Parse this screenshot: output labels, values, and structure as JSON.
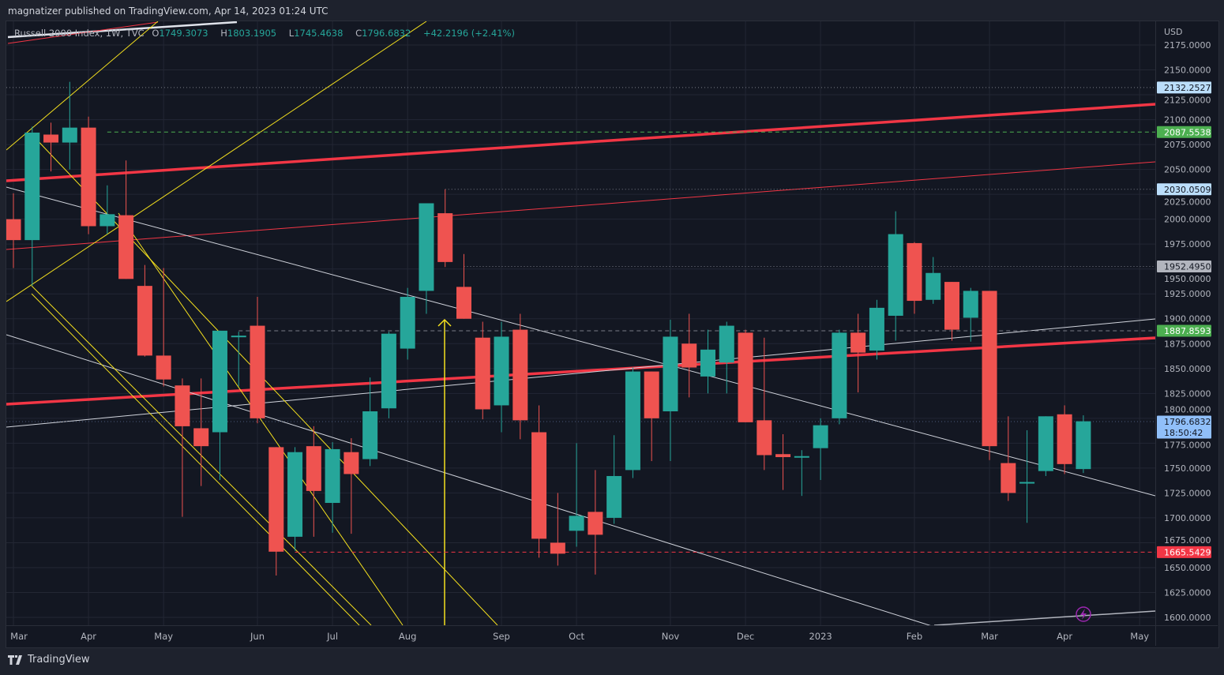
{
  "header": {
    "publisher_line": "magnatizer published on TradingView.com, Apr 14, 2023 01:24 UTC"
  },
  "legend": {
    "symbol": "Russell 2000 Index, 1W, TVC",
    "o_label": "O",
    "o": "1749.3073",
    "h_label": "H",
    "h": "1803.1905",
    "l_label": "L",
    "l": "1745.4638",
    "c_label": "C",
    "c": "1796.6832",
    "change": "+42.2196 (+2.41%)"
  },
  "footer": {
    "brand": "TradingView"
  },
  "colors": {
    "up": "#26a69a",
    "down": "#ef5350",
    "bg": "#131722",
    "grid": "#232734",
    "trend_red": "#f23645",
    "yellow": "#f5e11e"
  },
  "chart_data": {
    "type": "candlestick",
    "title": "Russell 2000 Index, 1W, TVC",
    "currency": "USD",
    "ylim": [
      1587,
      2189
    ],
    "y_ticks": [
      "2175.0000",
      "2150.0000",
      "2125.0000",
      "2100.0000",
      "2075.0000",
      "2050.0000",
      "2025.0000",
      "2000.0000",
      "1975.0000",
      "1950.0000",
      "1925.0000",
      "1900.0000",
      "1875.0000",
      "1850.0000",
      "1825.0000",
      "1800.0000",
      "1775.0000",
      "1750.0000",
      "1725.0000",
      "1700.0000",
      "1675.0000",
      "1650.0000",
      "1625.0000",
      "1600.0000"
    ],
    "x_ticks": [
      {
        "label": "Mar",
        "bar": 0
      },
      {
        "label": "Apr",
        "bar": 4
      },
      {
        "label": "May",
        "bar": 8
      },
      {
        "label": "Jun",
        "bar": 13
      },
      {
        "label": "Jul",
        "bar": 17
      },
      {
        "label": "Aug",
        "bar": 21
      },
      {
        "label": "Sep",
        "bar": 26
      },
      {
        "label": "Oct",
        "bar": 30
      },
      {
        "label": "Nov",
        "bar": 35
      },
      {
        "label": "Dec",
        "bar": 39
      },
      {
        "label": "2023",
        "bar": 43
      },
      {
        "label": "Feb",
        "bar": 48
      },
      {
        "label": "Mar",
        "bar": 52
      },
      {
        "label": "Apr",
        "bar": 56
      },
      {
        "label": "May",
        "bar": 60
      }
    ],
    "price_labels": [
      {
        "value": 2132.2527,
        "text": "2132.2527",
        "bg": "#bbdefb",
        "fg": "#131722",
        "line": "dotted",
        "color": "#787b86",
        "from_bar": -1
      },
      {
        "value": 2087.5538,
        "text": "2087.5538",
        "bg": "#4caf50",
        "fg": "#ffffff",
        "line": "dashed",
        "color": "#4caf50",
        "from_bar": 5
      },
      {
        "value": 2030.0509,
        "text": "2030.0509",
        "bg": "#bbdefb",
        "fg": "#131722",
        "line": "dotted",
        "color": "#787b86",
        "from_bar": 23
      },
      {
        "value": 1952.495,
        "text": "1952.4950",
        "bg": "#b2b5be",
        "fg": "#131722",
        "line": "dotted",
        "color": "#787b86",
        "from_bar": 24
      },
      {
        "value": 1887.8593,
        "text": "1887.8593",
        "bg": "#4caf50",
        "fg": "#ffffff",
        "line": "dashed",
        "color": "#787b86",
        "from_bar": 12
      },
      {
        "value": 1796.6832,
        "text": "1796.6832",
        "sub": "18:50:42",
        "bg": "#90bff9",
        "fg": "#131722",
        "line": "dotted",
        "color": "#4a5a7a",
        "from_bar": -1
      },
      {
        "value": 1665.5429,
        "text": "1665.5429",
        "bg": "#f23645",
        "fg": "#ffffff",
        "line": "dashed",
        "color": "#f23645",
        "from_bar": 15
      }
    ],
    "candles": [
      [
        2000,
        2026,
        1951,
        1979
      ],
      [
        1979,
        2093,
        1933,
        2087
      ],
      [
        2085,
        2097,
        2048,
        2077
      ],
      [
        2077,
        2138,
        2050,
        2092
      ],
      [
        2092,
        2103,
        1985,
        1993
      ],
      [
        1993,
        2034,
        1985,
        2005
      ],
      [
        2004,
        2059,
        1940,
        1940
      ],
      [
        1933,
        1954,
        1862,
        1863
      ],
      [
        1863,
        1951,
        1832,
        1839
      ],
      [
        1833,
        1840,
        1701,
        1792
      ],
      [
        1790,
        1840,
        1732,
        1772
      ],
      [
        1786,
        1888,
        1738,
        1888
      ],
      [
        1882,
        1887,
        1832,
        1883
      ],
      [
        1893,
        1922,
        1795,
        1800
      ],
      [
        1771,
        1771,
        1642,
        1666
      ],
      [
        1681,
        1771,
        1667,
        1766
      ],
      [
        1772,
        1792,
        1681,
        1727
      ],
      [
        1715,
        1776,
        1685,
        1769
      ],
      [
        1766,
        1780,
        1684,
        1744
      ],
      [
        1759,
        1841,
        1752,
        1807
      ],
      [
        1810,
        1887,
        1800,
        1885
      ],
      [
        1870,
        1931,
        1859,
        1922
      ],
      [
        1928,
        2016,
        1905,
        2016
      ],
      [
        2006,
        2030,
        1952,
        1957
      ],
      [
        1932,
        1965,
        1900,
        1900
      ],
      [
        1881,
        1897,
        1799,
        1809
      ],
      [
        1813,
        1897,
        1786,
        1882
      ],
      [
        1889,
        1905,
        1779,
        1798
      ],
      [
        1786,
        1813,
        1660,
        1679
      ],
      [
        1675,
        1725,
        1652,
        1664
      ],
      [
        1687,
        1775,
        1671,
        1702
      ],
      [
        1706,
        1748,
        1643,
        1683
      ],
      [
        1700,
        1783,
        1694,
        1742
      ],
      [
        1748,
        1851,
        1740,
        1847
      ],
      [
        1847,
        1847,
        1757,
        1800
      ],
      [
        1807,
        1899,
        1757,
        1882
      ],
      [
        1875,
        1905,
        1821,
        1851
      ],
      [
        1842,
        1889,
        1825,
        1869
      ],
      [
        1856,
        1897,
        1825,
        1893
      ],
      [
        1886,
        1889,
        1796,
        1796
      ],
      [
        1798,
        1881,
        1748,
        1763
      ],
      [
        1764,
        1784,
        1728,
        1761
      ],
      [
        1762,
        1768,
        1722,
        1762
      ],
      [
        1770,
        1800,
        1738,
        1793
      ],
      [
        1800,
        1889,
        1794,
        1886
      ],
      [
        1886,
        1905,
        1826,
        1866
      ],
      [
        1868,
        1919,
        1859,
        1911
      ],
      [
        1903,
        2008,
        1878,
        1985
      ],
      [
        1976,
        1977,
        1905,
        1918
      ],
      [
        1919,
        1962,
        1915,
        1946
      ],
      [
        1937,
        1937,
        1878,
        1889
      ],
      [
        1901,
        1931,
        1877,
        1928
      ],
      [
        1928,
        1928,
        1758,
        1772
      ],
      [
        1755,
        1802,
        1717,
        1725
      ],
      [
        1735,
        1788,
        1695,
        1736
      ],
      [
        1747,
        1802,
        1742,
        1802
      ],
      [
        1804,
        1813,
        1744,
        1754
      ],
      [
        1749,
        1803,
        1745,
        1797
      ]
    ],
    "candle_fields": [
      "open",
      "high",
      "low",
      "close"
    ],
    "grid": true
  }
}
